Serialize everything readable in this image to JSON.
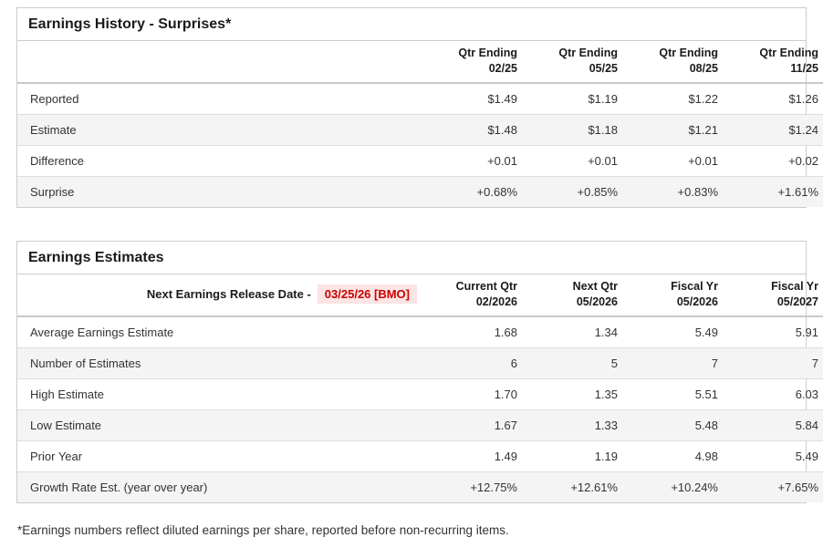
{
  "colors": {
    "positive_green": "#2e8b60",
    "alert_red": "#cc0000",
    "alert_background": "#fbe4e4",
    "alt_row_background": "#f4f4f4",
    "border_gray": "#cccccc"
  },
  "earnings_history": {
    "title": "Earnings History - Surprises*",
    "columns": [
      {
        "line1": "Qtr Ending",
        "line2": "02/25"
      },
      {
        "line1": "Qtr Ending",
        "line2": "05/25"
      },
      {
        "line1": "Qtr Ending",
        "line2": "08/25"
      },
      {
        "line1": "Qtr Ending",
        "line2": "11/25"
      }
    ],
    "rows": [
      {
        "label": "Reported",
        "values": [
          "$1.49",
          "$1.19",
          "$1.22",
          "$1.26"
        ],
        "positive": false
      },
      {
        "label": "Estimate",
        "values": [
          "$1.48",
          "$1.18",
          "$1.21",
          "$1.24"
        ],
        "positive": false
      },
      {
        "label": "Difference",
        "values": [
          "+0.01",
          "+0.01",
          "+0.01",
          "+0.02"
        ],
        "positive": true
      },
      {
        "label": "Surprise",
        "values": [
          "+0.68%",
          "+0.85%",
          "+0.83%",
          "+1.61%"
        ],
        "positive": true
      }
    ]
  },
  "earnings_estimates": {
    "title": "Earnings Estimates",
    "release_label": "Next Earnings Release Date -",
    "release_date": "03/25/26 [BMO]",
    "columns": [
      {
        "line1": "Current Qtr",
        "line2": "02/2026"
      },
      {
        "line1": "Next Qtr",
        "line2": "05/2026"
      },
      {
        "line1": "Fiscal Yr",
        "line2": "05/2026"
      },
      {
        "line1": "Fiscal Yr",
        "line2": "05/2027"
      }
    ],
    "rows": [
      {
        "label": "Average Earnings Estimate",
        "values": [
          "1.68",
          "1.34",
          "5.49",
          "5.91"
        ],
        "positive": false
      },
      {
        "label": "Number of Estimates",
        "values": [
          "6",
          "5",
          "7",
          "7"
        ],
        "positive": false
      },
      {
        "label": "High Estimate",
        "values": [
          "1.70",
          "1.35",
          "5.51",
          "6.03"
        ],
        "positive": false
      },
      {
        "label": "Low Estimate",
        "values": [
          "1.67",
          "1.33",
          "5.48",
          "5.84"
        ],
        "positive": false
      },
      {
        "label": "Prior Year",
        "values": [
          "1.49",
          "1.19",
          "4.98",
          "5.49"
        ],
        "positive": false
      },
      {
        "label": "Growth Rate Est. (year over year)",
        "values": [
          "+12.75%",
          "+12.61%",
          "+10.24%",
          "+7.65%"
        ],
        "positive": true
      }
    ]
  },
  "footnote": "*Earnings numbers reflect diluted earnings per share, reported before non-recurring items."
}
